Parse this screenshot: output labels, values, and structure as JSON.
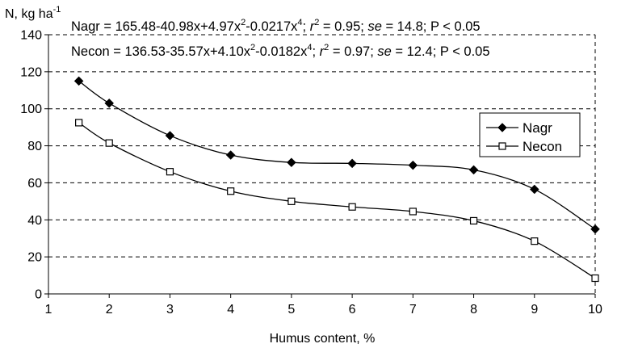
{
  "chart_data": {
    "type": "line",
    "ylabel": "N, kg ha",
    "ylabel_sup": "-1",
    "xlabel": "Humus content, %",
    "xlim": [
      1,
      10
    ],
    "ylim": [
      0,
      140
    ],
    "x_ticks": [
      1,
      2,
      3,
      4,
      5,
      6,
      7,
      8,
      9,
      10
    ],
    "y_ticks": [
      0,
      20,
      40,
      60,
      80,
      100,
      120,
      140
    ],
    "grid": "horizontal dashed",
    "legend_position": "right",
    "equations": [
      {
        "text": [
          {
            "t": "Nagr = 165.48-40.98x+4.97x"
          },
          {
            "t": "2",
            "sup": true
          },
          {
            "t": "-0.0217x"
          },
          {
            "t": "4",
            "sup": true
          },
          {
            "t": "; "
          },
          {
            "t": "r",
            "italic": true
          },
          {
            "t": "2",
            "sup": true
          },
          {
            "t": " = 0.95; "
          },
          {
            "t": "se",
            "italic": true
          },
          {
            "t": " = 14.8; P < 0.05"
          }
        ]
      },
      {
        "text": [
          {
            "t": "Necon = 136.53-35.57x+4.10x"
          },
          {
            "t": "2",
            "sup": true
          },
          {
            "t": "-0.0182x"
          },
          {
            "t": "4",
            "sup": true
          },
          {
            "t": "; "
          },
          {
            "t": "r",
            "italic": true
          },
          {
            "t": "2",
            "sup": true
          },
          {
            "t": " = 0.97; "
          },
          {
            "t": "se",
            "italic": true
          },
          {
            "t": " = 12.4; P < 0.05"
          }
        ]
      }
    ],
    "series": [
      {
        "name": "Nagr",
        "marker": "diamond",
        "color": "#000000",
        "x": [
          1.5,
          2,
          3,
          4,
          5,
          6,
          7,
          8,
          9,
          10
        ],
        "values": [
          115,
          103,
          85.5,
          75,
          71,
          70.5,
          69.5,
          67,
          56.5,
          35
        ]
      },
      {
        "name": "Necon",
        "marker": "square",
        "color": "#000000",
        "x": [
          1.5,
          2,
          3,
          4,
          5,
          6,
          7,
          8,
          9,
          10
        ],
        "values": [
          92.5,
          81.5,
          66,
          55.5,
          50,
          47,
          44.5,
          39.5,
          28.5,
          8.5
        ]
      }
    ]
  }
}
